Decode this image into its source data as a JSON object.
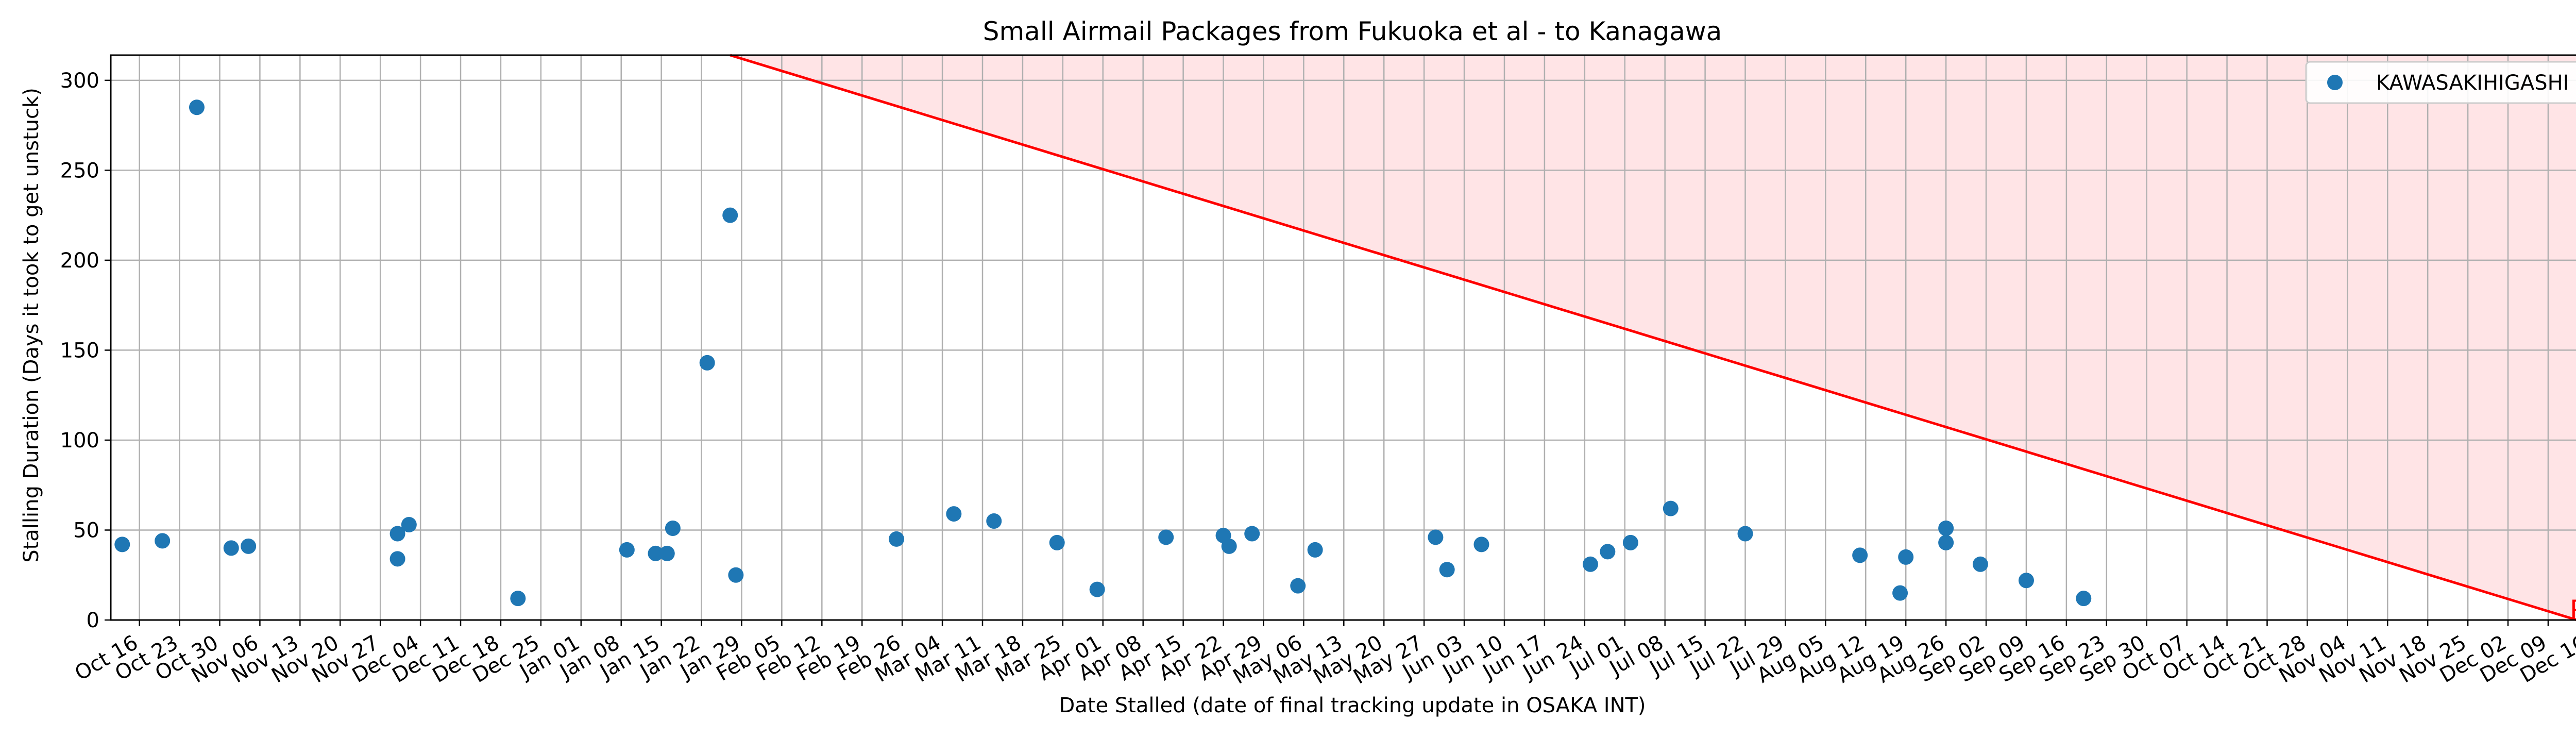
{
  "chart_data": {
    "type": "scatter",
    "title": "Small Airmail Packages from Fukuoka et al - to Kanagawa",
    "xlabel": "Date Stalled (date of final tracking update in OSAKA INT)",
    "ylabel": "Stalling Duration (Days it took to get unstuck)",
    "grid": true,
    "legend_position": "top-right",
    "xlim": [
      "2023-10-11",
      "2024-12-17"
    ],
    "ylim": [
      0,
      314
    ],
    "yticks": [
      0,
      50,
      100,
      150,
      200,
      250,
      300
    ],
    "xticks": [
      {
        "date": "2023-10-16",
        "label": "Oct 16"
      },
      {
        "date": "2023-10-23",
        "label": "Oct 23"
      },
      {
        "date": "2023-10-30",
        "label": "Oct 30"
      },
      {
        "date": "2023-11-06",
        "label": "Nov 06"
      },
      {
        "date": "2023-11-13",
        "label": "Nov 13"
      },
      {
        "date": "2023-11-20",
        "label": "Nov 20"
      },
      {
        "date": "2023-11-27",
        "label": "Nov 27"
      },
      {
        "date": "2023-12-04",
        "label": "Dec 04"
      },
      {
        "date": "2023-12-11",
        "label": "Dec 11"
      },
      {
        "date": "2023-12-18",
        "label": "Dec 18"
      },
      {
        "date": "2023-12-25",
        "label": "Dec 25"
      },
      {
        "date": "2024-01-01",
        "label": "Jan 01"
      },
      {
        "date": "2024-01-08",
        "label": "Jan 08"
      },
      {
        "date": "2024-01-15",
        "label": "Jan 15"
      },
      {
        "date": "2024-01-22",
        "label": "Jan 22"
      },
      {
        "date": "2024-01-29",
        "label": "Jan 29"
      },
      {
        "date": "2024-02-05",
        "label": "Feb 05"
      },
      {
        "date": "2024-02-12",
        "label": "Feb 12"
      },
      {
        "date": "2024-02-19",
        "label": "Feb 19"
      },
      {
        "date": "2024-02-26",
        "label": "Feb 26"
      },
      {
        "date": "2024-03-04",
        "label": "Mar 04"
      },
      {
        "date": "2024-03-11",
        "label": "Mar 11"
      },
      {
        "date": "2024-03-18",
        "label": "Mar 18"
      },
      {
        "date": "2024-03-25",
        "label": "Mar 25"
      },
      {
        "date": "2024-04-01",
        "label": "Apr 01"
      },
      {
        "date": "2024-04-08",
        "label": "Apr 08"
      },
      {
        "date": "2024-04-15",
        "label": "Apr 15"
      },
      {
        "date": "2024-04-22",
        "label": "Apr 22"
      },
      {
        "date": "2024-04-29",
        "label": "Apr 29"
      },
      {
        "date": "2024-05-06",
        "label": "May 06"
      },
      {
        "date": "2024-05-13",
        "label": "May 13"
      },
      {
        "date": "2024-05-20",
        "label": "May 20"
      },
      {
        "date": "2024-05-27",
        "label": "May 27"
      },
      {
        "date": "2024-06-03",
        "label": "Jun 03"
      },
      {
        "date": "2024-06-10",
        "label": "Jun 10"
      },
      {
        "date": "2024-06-17",
        "label": "Jun 17"
      },
      {
        "date": "2024-06-24",
        "label": "Jun 24"
      },
      {
        "date": "2024-07-01",
        "label": "Jul 01"
      },
      {
        "date": "2024-07-08",
        "label": "Jul 08"
      },
      {
        "date": "2024-07-15",
        "label": "Jul 15"
      },
      {
        "date": "2024-07-22",
        "label": "Jul 22"
      },
      {
        "date": "2024-07-29",
        "label": "Jul 29"
      },
      {
        "date": "2024-08-05",
        "label": "Aug 05"
      },
      {
        "date": "2024-08-12",
        "label": "Aug 12"
      },
      {
        "date": "2024-08-19",
        "label": "Aug 19"
      },
      {
        "date": "2024-08-26",
        "label": "Aug 26"
      },
      {
        "date": "2024-09-02",
        "label": "Sep 02"
      },
      {
        "date": "2024-09-09",
        "label": "Sep 09"
      },
      {
        "date": "2024-09-16",
        "label": "Sep 16"
      },
      {
        "date": "2024-09-23",
        "label": "Sep 23"
      },
      {
        "date": "2024-09-30",
        "label": "Sep 30"
      },
      {
        "date": "2024-10-07",
        "label": "Oct 07"
      },
      {
        "date": "2024-10-14",
        "label": "Oct 14"
      },
      {
        "date": "2024-10-21",
        "label": "Oct 21"
      },
      {
        "date": "2024-10-28",
        "label": "Oct 28"
      },
      {
        "date": "2024-11-04",
        "label": "Nov 04"
      },
      {
        "date": "2024-11-11",
        "label": "Nov 11"
      },
      {
        "date": "2024-11-18",
        "label": "Nov 18"
      },
      {
        "date": "2024-11-25",
        "label": "Nov 25"
      },
      {
        "date": "2024-12-02",
        "label": "Dec 02"
      },
      {
        "date": "2024-12-09",
        "label": "Dec 09"
      },
      {
        "date": "2024-12-16",
        "label": "Dec 16"
      }
    ],
    "series": [
      {
        "name": "KAWASAKIHIGASHI",
        "color": "#1f77b4",
        "points": [
          {
            "x": "2023-10-13",
            "y": 42
          },
          {
            "x": "2023-10-20",
            "y": 44
          },
          {
            "x": "2023-10-26",
            "y": 285
          },
          {
            "x": "2023-11-01",
            "y": 40
          },
          {
            "x": "2023-11-04",
            "y": 41
          },
          {
            "x": "2023-11-30",
            "y": 48
          },
          {
            "x": "2023-11-30",
            "y": 34
          },
          {
            "x": "2023-12-02",
            "y": 53
          },
          {
            "x": "2023-12-21",
            "y": 12
          },
          {
            "x": "2024-01-09",
            "y": 39
          },
          {
            "x": "2024-01-14",
            "y": 37
          },
          {
            "x": "2024-01-16",
            "y": 37
          },
          {
            "x": "2024-01-17",
            "y": 51
          },
          {
            "x": "2024-01-23",
            "y": 143
          },
          {
            "x": "2024-01-27",
            "y": 225
          },
          {
            "x": "2024-01-28",
            "y": 25
          },
          {
            "x": "2024-02-25",
            "y": 45
          },
          {
            "x": "2024-03-06",
            "y": 59
          },
          {
            "x": "2024-03-13",
            "y": 55
          },
          {
            "x": "2024-03-24",
            "y": 43
          },
          {
            "x": "2024-03-31",
            "y": 17
          },
          {
            "x": "2024-04-12",
            "y": 46
          },
          {
            "x": "2024-04-22",
            "y": 47
          },
          {
            "x": "2024-04-23",
            "y": 41
          },
          {
            "x": "2024-04-27",
            "y": 48
          },
          {
            "x": "2024-05-05",
            "y": 19
          },
          {
            "x": "2024-05-08",
            "y": 39
          },
          {
            "x": "2024-05-29",
            "y": 46
          },
          {
            "x": "2024-05-31",
            "y": 28
          },
          {
            "x": "2024-06-06",
            "y": 42
          },
          {
            "x": "2024-06-25",
            "y": 31
          },
          {
            "x": "2024-06-28",
            "y": 38
          },
          {
            "x": "2024-07-02",
            "y": 43
          },
          {
            "x": "2024-07-09",
            "y": 62
          },
          {
            "x": "2024-07-22",
            "y": 48
          },
          {
            "x": "2024-08-11",
            "y": 36
          },
          {
            "x": "2024-08-18",
            "y": 15
          },
          {
            "x": "2024-08-19",
            "y": 35
          },
          {
            "x": "2024-08-26",
            "y": 43
          },
          {
            "x": "2024-08-26",
            "y": 51
          },
          {
            "x": "2024-09-01",
            "y": 31
          },
          {
            "x": "2024-09-09",
            "y": 22
          },
          {
            "x": "2024-09-19",
            "y": 12
          }
        ]
      }
    ],
    "reference_line": {
      "color": "#ff0000",
      "fill": "#ffe4e6",
      "from": {
        "x": "2024-01-27",
        "y": 314
      },
      "to": {
        "x": "2024-12-14",
        "y": 0
      },
      "label": "Present"
    }
  }
}
